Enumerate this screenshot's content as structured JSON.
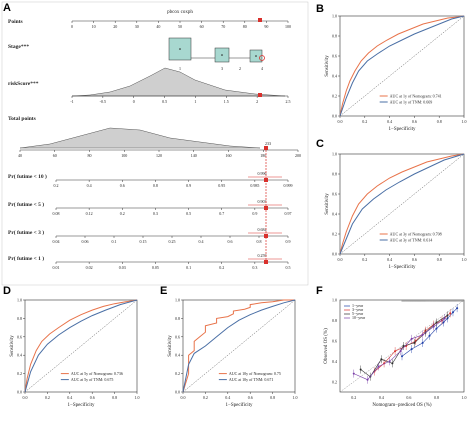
{
  "colors": {
    "orange": "#e8734a",
    "blue": "#4a6fa5",
    "red": "#d9302c",
    "teal_fill": "#a8d8d0",
    "gray_fill": "#cfcfcf"
  },
  "panels": {
    "A": {
      "letter": "A"
    },
    "B": {
      "letter": "B"
    },
    "C": {
      "letter": "C"
    },
    "D": {
      "letter": "D"
    },
    "E": {
      "letter": "E"
    },
    "F": {
      "letter": "F"
    }
  },
  "chart_data": [
    {
      "panel": "A",
      "type": "nomogram",
      "title": "pbcox coxph",
      "rows": [
        {
          "label": "Points",
          "ticks": [
            "0",
            "10",
            "20",
            "30",
            "40",
            "50",
            "60",
            "70",
            "80",
            "90",
            "100"
          ]
        },
        {
          "label": "Stage***",
          "ticks": []
        },
        {
          "label": "riskScore***",
          "ticks": [
            "-1",
            "-0.5",
            "0",
            "0.5",
            "1",
            "1.5",
            "2",
            "2.5"
          ]
        },
        {
          "label": "Total points",
          "ticks": [
            "40",
            "60",
            "80",
            "100",
            "120",
            "140",
            "160",
            "180",
            "200"
          ]
        },
        {
          "label": "Pr( futime < 10 )",
          "ticks": [
            "0.2",
            "0.4",
            "0.6",
            "0.8",
            "0.9",
            "0.95",
            "0.985",
            "0.999"
          ]
        },
        {
          "label": "Pr( futime < 5 )",
          "ticks": [
            "0.08",
            "0.12",
            "0.2",
            "0.3",
            "0.5",
            "0.7",
            "0.9",
            "0.97"
          ]
        },
        {
          "label": "Pr( futime < 3 )",
          "ticks": [
            "0.04",
            "0.06",
            "0.1",
            "0.15",
            "0.25",
            "0.4",
            "0.6",
            "0.8",
            "0.9"
          ]
        },
        {
          "label": "Pr( futime < 1 )",
          "ticks": [
            "0.01",
            "0.02",
            "0.03",
            "0.05",
            "0.1",
            "0.2",
            "0.3",
            "0.5"
          ]
        }
      ],
      "stage_values": [
        "1",
        "3",
        "2",
        "4"
      ],
      "total_point_marker": "233",
      "prob_annotations": [
        "0.996",
        "0.903",
        "0.684",
        "0.259"
      ]
    },
    {
      "panel": "B",
      "type": "line",
      "xlabel": "1−Specificity",
      "ylabel": "Sensitivity",
      "ticks": [
        "0.0",
        "0.2",
        "0.4",
        "0.6",
        "0.8",
        "1.0"
      ],
      "legend": [
        "AUC at 1y of Nomogram: 0.741",
        "AUC at 1y of TNM: 0.669"
      ],
      "series": [
        {
          "name": "AUC at 1y of Nomogram: 0.741",
          "x": [
            0,
            0.02,
            0.05,
            0.08,
            0.12,
            0.17,
            0.23,
            0.3,
            0.38,
            0.47,
            0.57,
            0.67,
            0.77,
            0.87,
            0.95,
            1
          ],
          "y": [
            0,
            0.12,
            0.25,
            0.35,
            0.45,
            0.55,
            0.63,
            0.7,
            0.76,
            0.82,
            0.87,
            0.92,
            0.95,
            0.98,
            0.99,
            1
          ]
        },
        {
          "name": "AUC at 1y of TNM: 0.669",
          "x": [
            0,
            0.05,
            0.1,
            0.15,
            0.22,
            0.3,
            0.4,
            0.5,
            0.6,
            0.7,
            0.8,
            0.9,
            1
          ],
          "y": [
            0,
            0.18,
            0.33,
            0.45,
            0.55,
            0.62,
            0.7,
            0.76,
            0.82,
            0.87,
            0.92,
            0.97,
            1
          ]
        }
      ]
    },
    {
      "panel": "C",
      "type": "line",
      "xlabel": "1−Specificity",
      "ylabel": "Sensitivity",
      "ticks": [
        "0.0",
        "0.2",
        "0.4",
        "0.6",
        "0.8",
        "1.0"
      ],
      "legend": [
        "AUC at 3y of Nomogram: 0.708",
        "AUC at 3y of TNM: 0.614"
      ],
      "series": [
        {
          "name": "AUC at 3y of Nomogram: 0.708",
          "x": [
            0,
            0.02,
            0.05,
            0.1,
            0.15,
            0.22,
            0.3,
            0.4,
            0.5,
            0.6,
            0.7,
            0.8,
            0.9,
            1
          ],
          "y": [
            0,
            0.1,
            0.22,
            0.38,
            0.5,
            0.6,
            0.68,
            0.76,
            0.82,
            0.87,
            0.92,
            0.95,
            0.98,
            1
          ]
        },
        {
          "name": "AUC at 3y of TNM: 0.614",
          "x": [
            0,
            0.05,
            0.1,
            0.18,
            0.27,
            0.37,
            0.48,
            0.6,
            0.72,
            0.84,
            1
          ],
          "y": [
            0,
            0.15,
            0.3,
            0.45,
            0.55,
            0.64,
            0.72,
            0.8,
            0.87,
            0.94,
            1
          ]
        }
      ]
    },
    {
      "panel": "D",
      "type": "line",
      "xlabel": "1−Specificity",
      "ylabel": "Sensitivity",
      "ticks": [
        "0.0",
        "0.2",
        "0.4",
        "0.6",
        "0.8",
        "1.0"
      ],
      "legend": [
        "AUC at 5y of Nomogram: 0.736",
        "AUC at 5y of TNM: 0.675"
      ],
      "series": [
        {
          "name": "AUC at 5y of Nomogram: 0.736",
          "x": [
            0,
            0.02,
            0.05,
            0.1,
            0.15,
            0.22,
            0.3,
            0.4,
            0.5,
            0.6,
            0.7,
            0.8,
            0.9,
            1
          ],
          "y": [
            0,
            0.15,
            0.3,
            0.45,
            0.55,
            0.63,
            0.7,
            0.78,
            0.84,
            0.89,
            0.93,
            0.96,
            0.98,
            1
          ]
        },
        {
          "name": "AUC at 5y of TNM: 0.675",
          "x": [
            0,
            0.05,
            0.12,
            0.2,
            0.3,
            0.4,
            0.5,
            0.6,
            0.72,
            0.85,
            1
          ],
          "y": [
            0,
            0.22,
            0.4,
            0.52,
            0.62,
            0.7,
            0.77,
            0.83,
            0.89,
            0.95,
            1
          ]
        }
      ]
    },
    {
      "panel": "E",
      "type": "line",
      "xlabel": "1−Specificity",
      "ylabel": "Sensitivity",
      "ticks": [
        "0.0",
        "0.2",
        "0.4",
        "0.6",
        "0.8",
        "1.0"
      ],
      "legend": [
        "AUC at 10y of Nomogram: 0.75",
        "AUC at 10y of TNM: 0.671"
      ],
      "series": [
        {
          "name": "AUC at 10y of Nomogram: 0.75",
          "x": [
            0,
            0.05,
            0.05,
            0.1,
            0.1,
            0.15,
            0.2,
            0.2,
            0.3,
            0.3,
            0.4,
            0.45,
            0.45,
            0.55,
            0.6,
            0.6,
            0.7,
            0.8,
            0.9,
            1
          ],
          "y": [
            0,
            0.2,
            0.4,
            0.45,
            0.55,
            0.6,
            0.65,
            0.72,
            0.75,
            0.8,
            0.82,
            0.85,
            0.88,
            0.9,
            0.92,
            0.95,
            0.97,
            0.98,
            1,
            1
          ]
        },
        {
          "name": "AUC at 10y of TNM: 0.671",
          "x": [
            0,
            0.05,
            0.1,
            0.2,
            0.3,
            0.4,
            0.5,
            0.6,
            0.7,
            0.8,
            0.9,
            1
          ],
          "y": [
            0,
            0.3,
            0.42,
            0.5,
            0.6,
            0.7,
            0.78,
            0.84,
            0.89,
            0.93,
            0.97,
            1
          ]
        }
      ]
    },
    {
      "panel": "F",
      "type": "scatter",
      "xlabel": "Nomogram−prediced OS (%)",
      "ylabel": "Observed OS (%)",
      "ticks": [
        "0.2",
        "0.4",
        "0.6",
        "0.8",
        "1.0"
      ],
      "legend": [
        "1−year",
        "3−year",
        "5−year",
        "10−year"
      ],
      "series": [
        {
          "name": "1−year",
          "x": [
            0.55,
            0.62,
            0.7,
            0.75,
            0.8,
            0.85,
            0.88,
            0.92,
            0.95
          ],
          "y": [
            0.45,
            0.52,
            0.58,
            0.65,
            0.72,
            0.78,
            0.82,
            0.88,
            0.92
          ]
        },
        {
          "name": "3−year",
          "x": [
            0.35,
            0.42,
            0.5,
            0.58,
            0.65,
            0.72,
            0.78,
            0.84,
            0.9
          ],
          "y": [
            0.3,
            0.38,
            0.5,
            0.55,
            0.6,
            0.7,
            0.76,
            0.8,
            0.87
          ]
        },
        {
          "name": "5−year",
          "x": [
            0.25,
            0.32,
            0.4,
            0.48,
            0.56,
            0.64,
            0.72,
            0.8,
            0.88
          ],
          "y": [
            0.32,
            0.25,
            0.42,
            0.38,
            0.55,
            0.58,
            0.68,
            0.78,
            0.85
          ]
        },
        {
          "name": "10−year",
          "x": [
            0.2,
            0.3,
            0.38,
            0.46,
            0.54,
            0.62,
            0.7,
            0.78,
            0.86
          ],
          "y": [
            0.28,
            0.22,
            0.35,
            0.4,
            0.5,
            0.62,
            0.66,
            0.74,
            0.82
          ]
        }
      ]
    }
  ]
}
